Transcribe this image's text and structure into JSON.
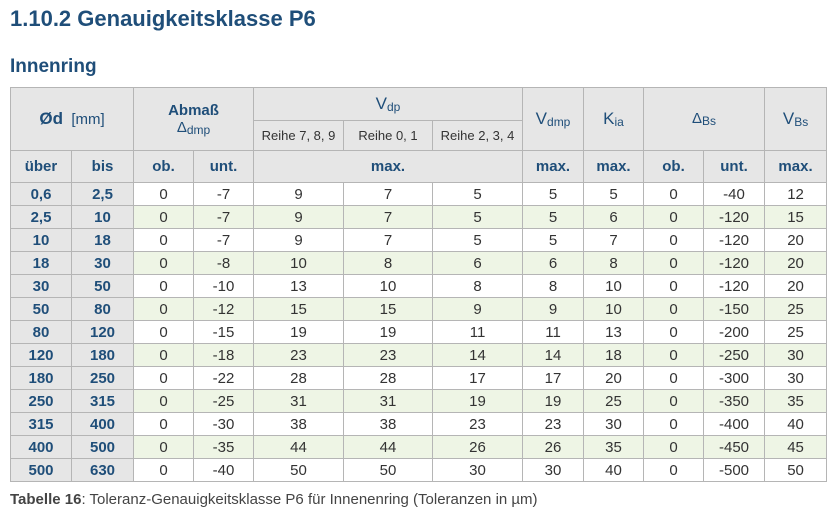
{
  "header": {
    "title": "1.10.2 Genauigkeitsklasse P6",
    "subtitle": "Innenring"
  },
  "table": {
    "head": {
      "d": {
        "symbol": "Ød",
        "unit": "[mm]"
      },
      "abmass": {
        "label": "Abmaß",
        "symbol": "Δ",
        "sub": "dmp"
      },
      "vdp": {
        "symbol": "V",
        "sub": "dp"
      },
      "reihen": [
        "Reihe 7, 8, 9",
        "Reihe 0, 1",
        "Reihe 2, 3, 4"
      ],
      "vdmp": {
        "symbol": "V",
        "sub": "dmp"
      },
      "kia": {
        "symbol": "K",
        "sub": "ia"
      },
      "dbs": {
        "symbol": "Δ",
        "sub": "Bs"
      },
      "vbs": {
        "symbol": "V",
        "sub": "Bs"
      },
      "subheads": [
        "über",
        "bis",
        "ob.",
        "unt.",
        "max.",
        "max.",
        "max.",
        "ob.",
        "unt.",
        "max."
      ]
    },
    "rows": [
      [
        "0,6",
        "2,5",
        "0",
        "-7",
        "9",
        "7",
        "5",
        "5",
        "5",
        "0",
        "-40",
        "12"
      ],
      [
        "2,5",
        "10",
        "0",
        "-7",
        "9",
        "7",
        "5",
        "5",
        "6",
        "0",
        "-120",
        "15"
      ],
      [
        "10",
        "18",
        "0",
        "-7",
        "9",
        "7",
        "5",
        "5",
        "7",
        "0",
        "-120",
        "20"
      ],
      [
        "18",
        "30",
        "0",
        "-8",
        "10",
        "8",
        "6",
        "6",
        "8",
        "0",
        "-120",
        "20"
      ],
      [
        "30",
        "50",
        "0",
        "-10",
        "13",
        "10",
        "8",
        "8",
        "10",
        "0",
        "-120",
        "20"
      ],
      [
        "50",
        "80",
        "0",
        "-12",
        "15",
        "15",
        "9",
        "9",
        "10",
        "0",
        "-150",
        "25"
      ],
      [
        "80",
        "120",
        "0",
        "-15",
        "19",
        "19",
        "11",
        "11",
        "13",
        "0",
        "-200",
        "25"
      ],
      [
        "120",
        "180",
        "0",
        "-18",
        "23",
        "23",
        "14",
        "14",
        "18",
        "0",
        "-250",
        "30"
      ],
      [
        "180",
        "250",
        "0",
        "-22",
        "28",
        "28",
        "17",
        "17",
        "20",
        "0",
        "-300",
        "30"
      ],
      [
        "250",
        "315",
        "0",
        "-25",
        "31",
        "31",
        "19",
        "19",
        "25",
        "0",
        "-350",
        "35"
      ],
      [
        "315",
        "400",
        "0",
        "-30",
        "38",
        "38",
        "23",
        "23",
        "30",
        "0",
        "-400",
        "40"
      ],
      [
        "400",
        "500",
        "0",
        "-35",
        "44",
        "44",
        "26",
        "26",
        "35",
        "0",
        "-450",
        "45"
      ],
      [
        "500",
        "630",
        "0",
        "-40",
        "50",
        "50",
        "30",
        "30",
        "40",
        "0",
        "-500",
        "50"
      ]
    ]
  },
  "caption": {
    "label": "Tabelle 16",
    "text": ": Toleranz-Genauigkeitsklasse P6 für Innenenring (Toleranzen in µm)"
  }
}
